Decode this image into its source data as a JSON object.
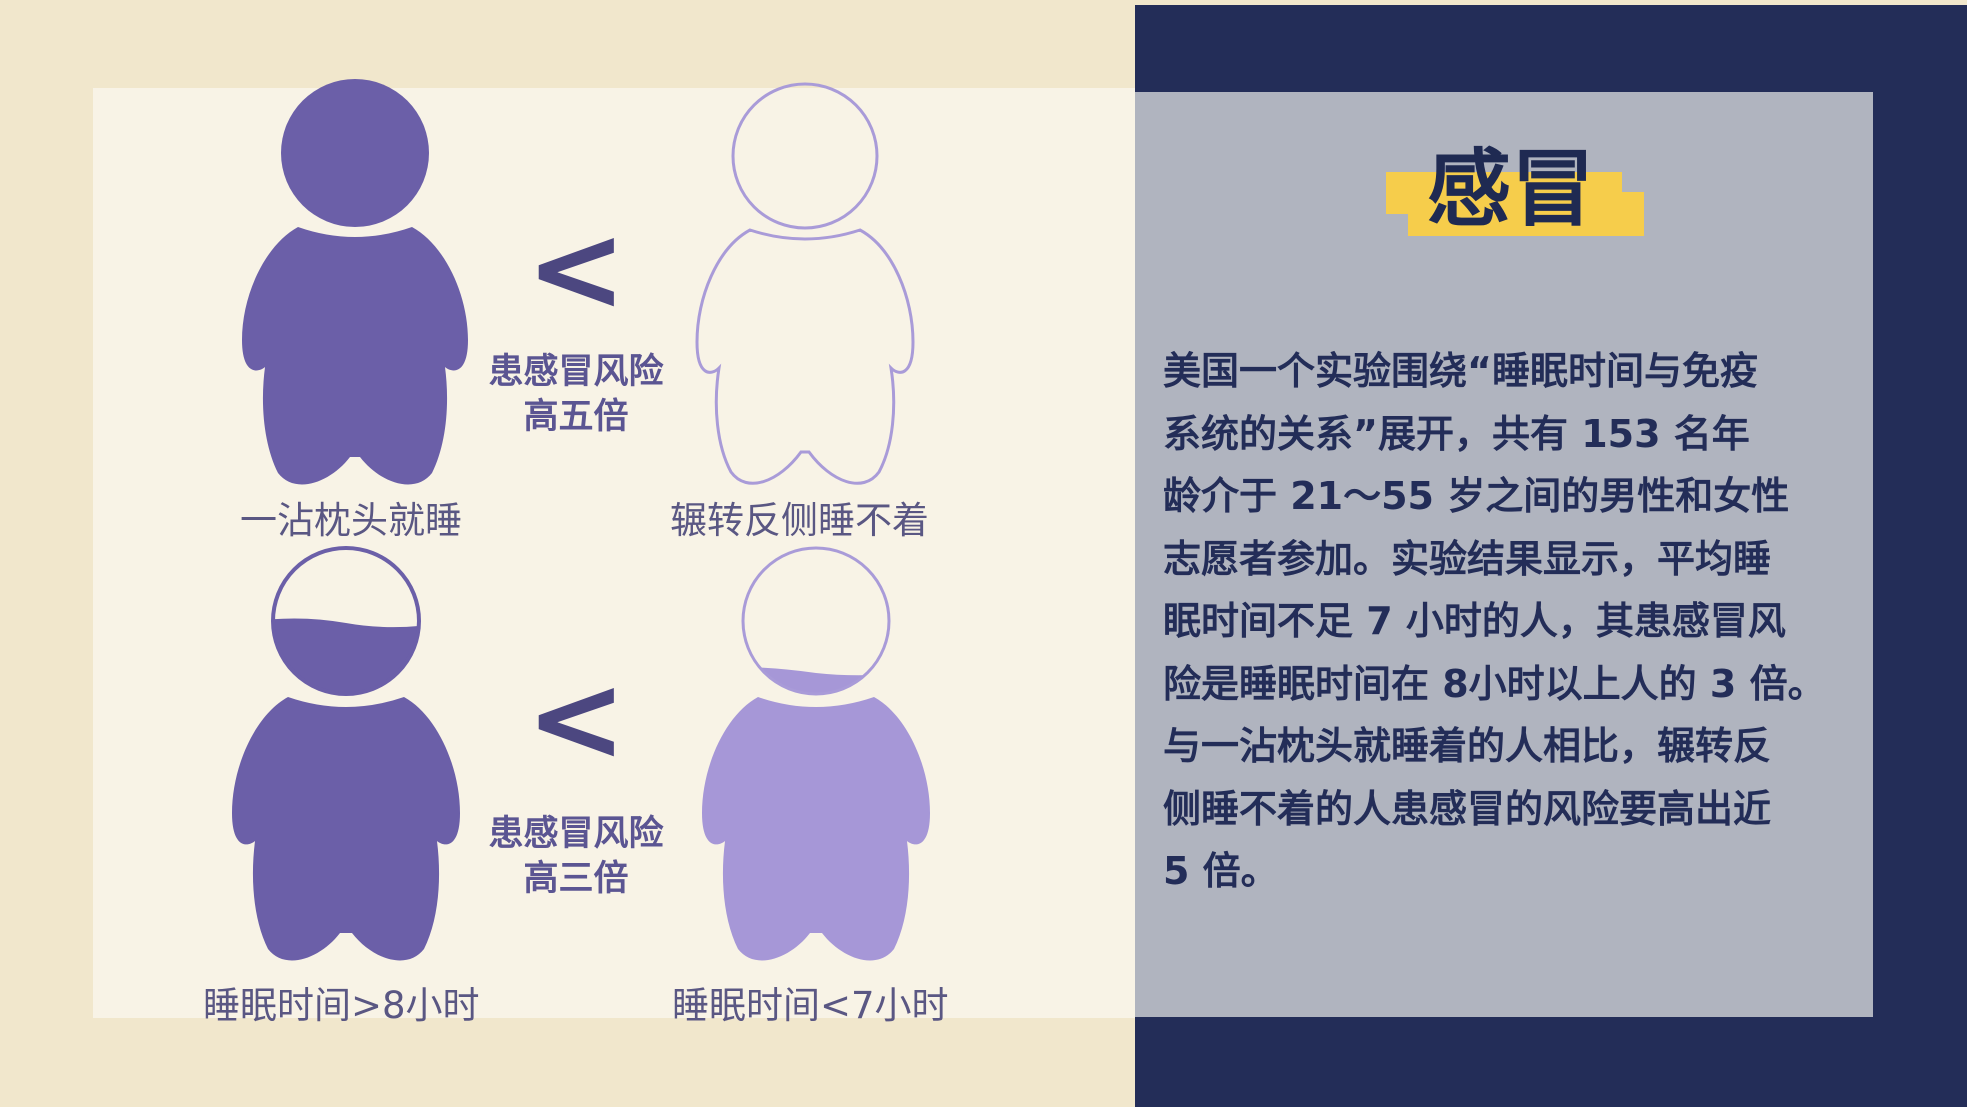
{
  "comparisons": [
    {
      "left_caption": "一沾枕头就睡",
      "right_caption": "辗转反侧睡不着",
      "symbol": "<",
      "risk_line1": "患感冒风险",
      "risk_line2": "高五倍"
    },
    {
      "left_caption": "睡眠时间>8小时",
      "right_caption": "睡眠时间<7小时",
      "symbol": "<",
      "risk_line1": "患感冒风险",
      "risk_line2": "高三倍"
    }
  ],
  "card": {
    "title": "感冒",
    "body_lines": [
      "美国一个实验围绕“睡眠时间与免疫",
      "系统的关系”展开，共有 153 名年",
      "龄介于 21～55 岁之间的男性和女性",
      "志愿者参加。实验结果显示，平均睡",
      "眠时间不足 7 小时的人，其患感冒风",
      "险是睡眠时间在 8小时以上人的 3 倍。",
      "与一沾枕头就睡着的人相比，辗转反",
      "侧睡不着的人患感冒的风险要高出近",
      "5 倍。"
    ]
  },
  "colors": {
    "figure_dark": "#6b5fa8",
    "figure_light": "#a697d7",
    "figure_outline": "#a99bd8",
    "navy": "#232d58",
    "highlight": "#f6cd4b"
  }
}
